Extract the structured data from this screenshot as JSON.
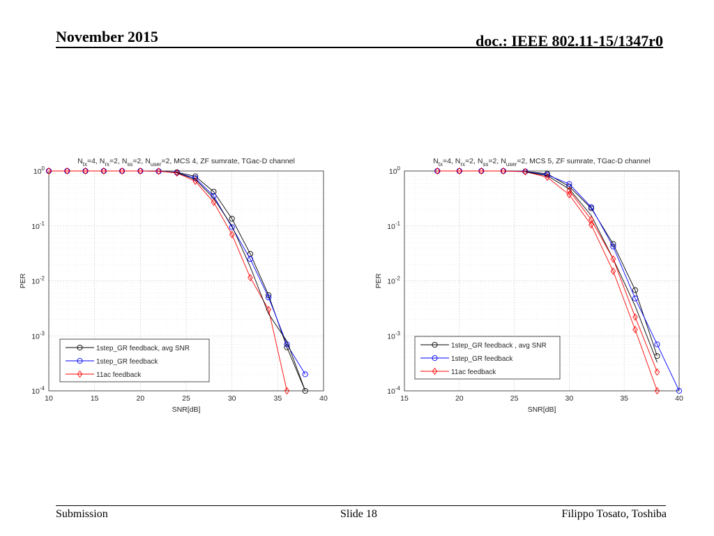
{
  "slide": {
    "header_left": "November 2015",
    "header_right": "doc.: IEEE 802.11-15/1347r0",
    "footer_left": "Submission",
    "footer_center": "Slide 18",
    "footer_right": "Filippo Tosato, Toshiba"
  },
  "chart_data": [
    {
      "type": "line",
      "title": [
        {
          "t": "N",
          "s": "n"
        },
        {
          "t": "tx",
          "s": "sub"
        },
        {
          "t": "=4, N",
          "s": "n"
        },
        {
          "t": "rx",
          "s": "sub"
        },
        {
          "t": "=2, N",
          "s": "n"
        },
        {
          "t": "ss",
          "s": "sub"
        },
        {
          "t": "=2, N",
          "s": "n"
        },
        {
          "t": "user",
          "s": "sub"
        },
        {
          "t": "=2, MCS 4, ZF sumrate, TGac-D channel",
          "s": "n"
        }
      ],
      "xlabel": "SNR[dB]",
      "ylabel": "PER",
      "xlim": [
        10,
        40
      ],
      "ylim": [
        0.0001,
        1
      ],
      "yscale": "log",
      "xticks": [
        10,
        15,
        20,
        25,
        30,
        35,
        40
      ],
      "yticks": [
        0,
        -1,
        -2,
        -3,
        -4
      ],
      "grid": true,
      "legend_position": "bottom-left",
      "series": [
        {
          "name": "1step_GR feedback, avg SNR",
          "color": "#000000",
          "marker": "circle",
          "x": [
            10,
            12,
            14,
            16,
            18,
            20,
            22,
            24,
            26,
            28,
            30,
            32,
            34,
            36,
            38
          ],
          "y": [
            1,
            1,
            1,
            1,
            1,
            1,
            0.99,
            0.95,
            0.8,
            0.42,
            0.135,
            0.031,
            0.0055,
            0.00062,
            0.0001
          ]
        },
        {
          "name": "1step_GR feedback",
          "color": "#0000ff",
          "marker": "circle",
          "x": [
            10,
            12,
            14,
            16,
            18,
            20,
            22,
            24,
            26,
            28,
            30,
            32,
            34,
            36,
            38
          ],
          "y": [
            1,
            1,
            1,
            1,
            1,
            1,
            0.99,
            0.93,
            0.74,
            0.35,
            0.095,
            0.025,
            0.005,
            0.0007,
            0.0002
          ]
        },
        {
          "name": "11ac feedback",
          "color": "#ff0000",
          "marker": "diamond",
          "x": [
            10,
            12,
            14,
            16,
            18,
            20,
            22,
            24,
            26,
            28,
            30,
            32,
            34,
            36
          ],
          "y": [
            1,
            1,
            1,
            1,
            1,
            1,
            0.99,
            0.92,
            0.65,
            0.27,
            0.07,
            0.0115,
            0.003,
            0.0001
          ]
        },
        {
          "name": "",
          "color": "#000000",
          "marker": "none",
          "line_only": true,
          "x": [
            24,
            26,
            28,
            30,
            32,
            34,
            36,
            38
          ],
          "y": [
            0.93,
            0.7,
            0.32,
            0.1,
            0.018,
            0.0025,
            0.0008,
            0.0001
          ]
        }
      ]
    },
    {
      "type": "line",
      "title": [
        {
          "t": "N",
          "s": "n"
        },
        {
          "t": "tx",
          "s": "sub"
        },
        {
          "t": "=4, N",
          "s": "n"
        },
        {
          "t": "rx",
          "s": "sub"
        },
        {
          "t": "=2, N",
          "s": "n"
        },
        {
          "t": "ss",
          "s": "sub"
        },
        {
          "t": "=2, N",
          "s": "n"
        },
        {
          "t": "user",
          "s": "sub"
        },
        {
          "t": "=2, MCS 5, ZF sumrate, TGac-D channel",
          "s": "n"
        }
      ],
      "xlabel": "SNR[dB]",
      "ylabel": "PER",
      "xlim": [
        15,
        40
      ],
      "ylim": [
        0.0001,
        1
      ],
      "yscale": "log",
      "xticks": [
        15,
        20,
        25,
        30,
        35,
        40
      ],
      "yticks": [
        0,
        -1,
        -2,
        -3,
        -4
      ],
      "grid": true,
      "legend_position": "bottom-left",
      "series": [
        {
          "name": "1step_GR feedback , avg SNR",
          "color": "#000000",
          "marker": "circle",
          "x": [
            18,
            20,
            22,
            24,
            26,
            28,
            30,
            32,
            34,
            36,
            38
          ],
          "y": [
            1,
            1,
            1,
            1,
            0.98,
            0.89,
            0.52,
            0.21,
            0.047,
            0.0068,
            0.00043
          ]
        },
        {
          "name": "1step_GR feedback",
          "color": "#0000ff",
          "marker": "circle",
          "x": [
            18,
            20,
            22,
            24,
            26,
            28,
            30,
            32,
            34,
            36,
            38,
            40
          ],
          "y": [
            1,
            1,
            1,
            1,
            0.98,
            0.85,
            0.58,
            0.22,
            0.042,
            0.0048,
            0.0007,
            0.0001
          ]
        },
        {
          "name": "11ac feedback",
          "color": "#ff0000",
          "marker": "diamond",
          "x": [
            18,
            20,
            22,
            24,
            26,
            28,
            30,
            32,
            34,
            36,
            38
          ],
          "y": [
            1,
            1,
            1,
            1,
            0.97,
            0.77,
            0.37,
            0.105,
            0.015,
            0.0013,
            0.0001
          ]
        },
        {
          "name": "",
          "color": "#000000",
          "marker": "none",
          "line_only": true,
          "x": [
            26,
            28,
            30,
            32,
            34,
            36,
            38
          ],
          "y": [
            0.97,
            0.82,
            0.47,
            0.155,
            0.025,
            0.0035,
            0.00033
          ]
        },
        {
          "name": "",
          "color": "#ff0000",
          "marker": "diamond",
          "line_only": false,
          "x": [
            30,
            32,
            34,
            36,
            38
          ],
          "y": [
            0.44,
            0.13,
            0.025,
            0.0022,
            0.00022
          ]
        }
      ]
    }
  ]
}
